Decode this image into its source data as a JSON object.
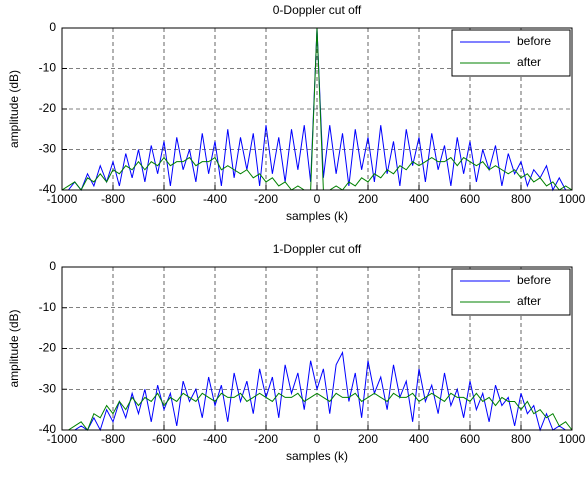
{
  "chart_data": [
    {
      "type": "line",
      "title": "0-Doppler cut off",
      "x_label": "samples (k)",
      "y_label": "amplitude (dB)",
      "x": [
        -1000,
        -975,
        -950,
        -925,
        -900,
        -875,
        -850,
        -825,
        -800,
        -775,
        -750,
        -725,
        -700,
        -675,
        -650,
        -625,
        -600,
        -575,
        -550,
        -525,
        -500,
        -475,
        -450,
        -425,
        -400,
        -375,
        -350,
        -325,
        -300,
        -275,
        -250,
        -225,
        -200,
        -175,
        -150,
        -125,
        -100,
        -75,
        -50,
        -25,
        0,
        25,
        50,
        75,
        100,
        125,
        150,
        175,
        200,
        225,
        250,
        275,
        300,
        325,
        350,
        375,
        400,
        425,
        450,
        475,
        500,
        525,
        550,
        575,
        600,
        625,
        650,
        675,
        700,
        725,
        750,
        775,
        800,
        825,
        850,
        875,
        900,
        925,
        950,
        975,
        1000
      ],
      "series": [
        {
          "name": "before",
          "color": "#0000ff",
          "values": [
            -40,
            -40,
            -38,
            -40,
            -36,
            -39,
            -34,
            -38,
            -33,
            -39,
            -31,
            -37,
            -30,
            -38,
            -29,
            -36,
            -28,
            -39,
            -27,
            -35,
            -30,
            -38,
            -26,
            -36,
            -28,
            -39,
            -25,
            -37,
            -27,
            -35,
            -26,
            -39,
            -24,
            -36,
            -27,
            -38,
            -25,
            -35,
            -24,
            -38,
            0,
            -37,
            -24,
            -36,
            -26,
            -39,
            -25,
            -35,
            -27,
            -38,
            -24,
            -36,
            -28,
            -39,
            -25,
            -34,
            -27,
            -38,
            -26,
            -35,
            -29,
            -39,
            -27,
            -36,
            -28,
            -38,
            -30,
            -35,
            -29,
            -39,
            -31,
            -36,
            -33,
            -39,
            -35,
            -37,
            -34,
            -40,
            -37,
            -40,
            -40
          ]
        },
        {
          "name": "after",
          "color": "#008000",
          "values": [
            -40,
            -39,
            -38,
            -40,
            -37,
            -38,
            -36,
            -38,
            -35,
            -36,
            -34,
            -35,
            -33,
            -35,
            -33,
            -34,
            -32,
            -34,
            -33,
            -33,
            -32,
            -34,
            -33,
            -33,
            -32,
            -35,
            -34,
            -35,
            -36,
            -35,
            -37,
            -36,
            -38,
            -37,
            -39,
            -38,
            -40,
            -39,
            -40,
            -40,
            0,
            -40,
            -40,
            -39,
            -40,
            -38,
            -39,
            -37,
            -38,
            -36,
            -37,
            -35,
            -36,
            -34,
            -35,
            -33,
            -34,
            -33,
            -32,
            -33,
            -33,
            -32,
            -34,
            -32,
            -33,
            -34,
            -33,
            -35,
            -34,
            -35,
            -36,
            -35,
            -37,
            -36,
            -38,
            -37,
            -39,
            -38,
            -40,
            -39,
            -40
          ]
        }
      ],
      "xlim": [
        -1000,
        1000
      ],
      "xticks": [
        -1000,
        -800,
        -600,
        -400,
        -200,
        0,
        200,
        400,
        600,
        800,
        1000
      ],
      "ylim": [
        -40,
        0
      ],
      "yticks": [
        0,
        -10,
        -20,
        -30,
        -40
      ],
      "grid": true,
      "legend": "upper right"
    },
    {
      "type": "line",
      "title": "1-Doppler cut off",
      "x_label": "samples (k)",
      "y_label": "amplitude (dB)",
      "x": [
        -1000,
        -975,
        -950,
        -925,
        -900,
        -875,
        -850,
        -825,
        -800,
        -775,
        -750,
        -725,
        -700,
        -675,
        -650,
        -625,
        -600,
        -575,
        -550,
        -525,
        -500,
        -475,
        -450,
        -425,
        -400,
        -375,
        -350,
        -325,
        -300,
        -275,
        -250,
        -225,
        -200,
        -175,
        -150,
        -125,
        -100,
        -75,
        -50,
        -25,
        0,
        25,
        50,
        75,
        100,
        125,
        150,
        175,
        200,
        225,
        250,
        275,
        300,
        325,
        350,
        375,
        400,
        425,
        450,
        475,
        500,
        525,
        550,
        575,
        600,
        625,
        650,
        675,
        700,
        725,
        750,
        775,
        800,
        825,
        850,
        875,
        900,
        925,
        950,
        975,
        1000
      ],
      "series": [
        {
          "name": "before",
          "color": "#0000ff",
          "values": [
            -40,
            -40,
            -40,
            -39,
            -40,
            -37,
            -40,
            -35,
            -38,
            -33,
            -37,
            -31,
            -36,
            -30,
            -38,
            -29,
            -35,
            -31,
            -39,
            -28,
            -33,
            -30,
            -37,
            -27,
            -34,
            -29,
            -38,
            -26,
            -33,
            -28,
            -36,
            -25,
            -32,
            -27,
            -37,
            -24,
            -31,
            -26,
            -35,
            -23,
            -30,
            -25,
            -36,
            -24,
            -21,
            -33,
            -26,
            -37,
            -23,
            -31,
            -27,
            -35,
            -24,
            -32,
            -28,
            -38,
            -25,
            -33,
            -29,
            -36,
            -26,
            -34,
            -30,
            -37,
            -28,
            -35,
            -31,
            -38,
            -29,
            -34,
            -32,
            -39,
            -31,
            -36,
            -34,
            -40,
            -36,
            -40,
            -39,
            -40,
            -40
          ]
        },
        {
          "name": "after",
          "color": "#008000",
          "values": [
            -40,
            -40,
            -39,
            -38,
            -40,
            -36,
            -37,
            -34,
            -36,
            -33,
            -35,
            -32,
            -34,
            -32,
            -33,
            -31,
            -34,
            -32,
            -33,
            -31,
            -32,
            -33,
            -31,
            -32,
            -33,
            -31,
            -32,
            -32,
            -31,
            -33,
            -32,
            -31,
            -32,
            -33,
            -31,
            -32,
            -32,
            -31,
            -33,
            -32,
            -31,
            -32,
            -33,
            -31,
            -32,
            -32,
            -31,
            -33,
            -32,
            -31,
            -32,
            -33,
            -31,
            -32,
            -32,
            -31,
            -33,
            -32,
            -31,
            -32,
            -33,
            -31,
            -32,
            -32,
            -33,
            -31,
            -33,
            -32,
            -34,
            -32,
            -33,
            -33,
            -35,
            -33,
            -36,
            -35,
            -37,
            -36,
            -39,
            -38,
            -40
          ]
        }
      ],
      "xlim": [
        -1000,
        1000
      ],
      "xticks": [
        -1000,
        -800,
        -600,
        -400,
        -200,
        0,
        200,
        400,
        600,
        800,
        1000
      ],
      "ylim": [
        -40,
        0
      ],
      "yticks": [
        0,
        -10,
        -20,
        -30,
        -40
      ],
      "grid": true,
      "legend": "upper right"
    }
  ]
}
